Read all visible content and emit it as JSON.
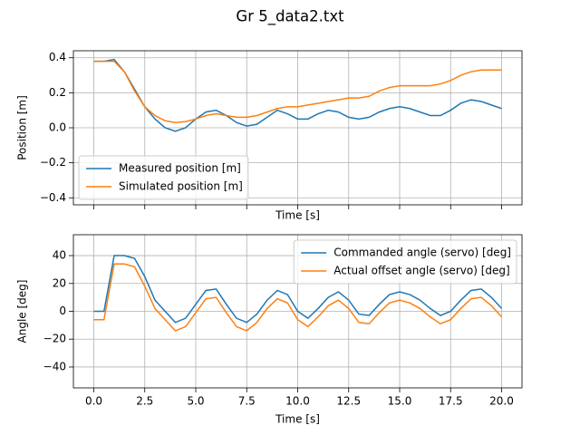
{
  "title": "Gr 5_data2.txt",
  "chart_data": [
    {
      "type": "line",
      "xlabel": "Time [s]",
      "ylabel": "Position [m]",
      "xlim": [
        -1,
        21
      ],
      "ylim": [
        -0.44,
        0.44
      ],
      "xticks": [
        0,
        2.5,
        5,
        7.5,
        10,
        12.5,
        15,
        17.5,
        20
      ],
      "xtick_labels": false,
      "yticks": [
        0.4,
        0.2,
        {
          "value": 0,
          "label": "0.0"
        },
        {
          "value": -0.2,
          "label": "−0.2"
        },
        {
          "value": -0.4,
          "label": "−0.4"
        }
      ],
      "grid": true,
      "legend": "lower left",
      "x": [
        0,
        0.5,
        1,
        1.5,
        2,
        2.5,
        3,
        3.5,
        4,
        4.5,
        5,
        5.5,
        6,
        6.5,
        7,
        7.5,
        8,
        8.5,
        9,
        9.5,
        10,
        10.5,
        11,
        11.5,
        12,
        12.5,
        13,
        13.5,
        14,
        14.5,
        15,
        15.5,
        16,
        16.5,
        17,
        17.5,
        18,
        18.5,
        19,
        19.5,
        20
      ],
      "series": [
        {
          "name": "Measured position [m]",
          "color": "#1f77b4",
          "values": [
            0.38,
            0.38,
            0.39,
            0.32,
            0.22,
            0.12,
            0.05,
            0.0,
            -0.02,
            0.0,
            0.05,
            0.09,
            0.1,
            0.07,
            0.03,
            0.01,
            0.02,
            0.06,
            0.1,
            0.08,
            0.05,
            0.05,
            0.08,
            0.1,
            0.09,
            0.06,
            0.05,
            0.06,
            0.09,
            0.11,
            0.12,
            0.11,
            0.09,
            0.07,
            0.07,
            0.1,
            0.14,
            0.16,
            0.15,
            0.13,
            0.11
          ]
        },
        {
          "name": "Simulated position [m]",
          "color": "#ff7f0e",
          "values": [
            0.38,
            0.38,
            0.38,
            0.32,
            0.21,
            0.12,
            0.07,
            0.04,
            0.03,
            0.035,
            0.05,
            0.07,
            0.08,
            0.07,
            0.06,
            0.06,
            0.07,
            0.09,
            0.11,
            0.12,
            0.12,
            0.13,
            0.14,
            0.15,
            0.16,
            0.17,
            0.17,
            0.18,
            0.21,
            0.23,
            0.24,
            0.24,
            0.24,
            0.24,
            0.25,
            0.27,
            0.3,
            0.32,
            0.33,
            0.33,
            0.33
          ]
        }
      ]
    },
    {
      "type": "line",
      "xlabel": "Time [s]",
      "ylabel": "Angle [deg]",
      "xlim": [
        -1,
        21
      ],
      "ylim": [
        -55,
        55
      ],
      "xticks": [
        {
          "value": 0,
          "label": "0.0"
        },
        2.5,
        {
          "value": 5,
          "label": "5.0"
        },
        7.5,
        {
          "value": 10,
          "label": "10.0"
        },
        12.5,
        {
          "value": 15,
          "label": "15.0"
        },
        17.5,
        {
          "value": 20,
          "label": "20.0"
        }
      ],
      "yticks": [
        40,
        20,
        0,
        {
          "value": -20,
          "label": "−20"
        },
        {
          "value": -40,
          "label": "−40"
        }
      ],
      "grid": true,
      "legend": "upper right",
      "x": [
        0,
        0.5,
        1,
        1.5,
        2,
        2.5,
        3,
        3.5,
        4,
        4.5,
        5,
        5.5,
        6,
        6.5,
        7,
        7.5,
        8,
        8.5,
        9,
        9.5,
        10,
        10.5,
        11,
        11.5,
        12,
        12.5,
        13,
        13.5,
        14,
        14.5,
        15,
        15.5,
        16,
        16.5,
        17,
        17.5,
        18,
        18.5,
        19,
        19.5,
        20
      ],
      "series": [
        {
          "name": "Commanded angle (servo) [deg]",
          "color": "#1f77b4",
          "values": [
            0,
            0,
            40,
            40,
            38,
            25,
            8,
            0,
            -8,
            -5,
            5,
            15,
            16,
            5,
            -5,
            -8,
            -2,
            8,
            15,
            12,
            0,
            -5,
            2,
            10,
            14,
            8,
            -2,
            -3,
            5,
            12,
            14,
            12,
            8,
            2,
            -3,
            0,
            8,
            15,
            16,
            10,
            2
          ]
        },
        {
          "name": "Actual offset angle (servo) [deg]",
          "color": "#ff7f0e",
          "values": [
            -6,
            -6,
            34,
            34,
            32,
            18,
            2,
            -6,
            -14,
            -11,
            -1,
            9,
            10,
            -1,
            -11,
            -14,
            -8,
            2,
            9,
            6,
            -6,
            -11,
            -4,
            4,
            8,
            2,
            -8,
            -9,
            -1,
            6,
            8,
            6,
            2,
            -4,
            -9,
            -6,
            2,
            9,
            10,
            4,
            -4
          ]
        }
      ]
    }
  ]
}
